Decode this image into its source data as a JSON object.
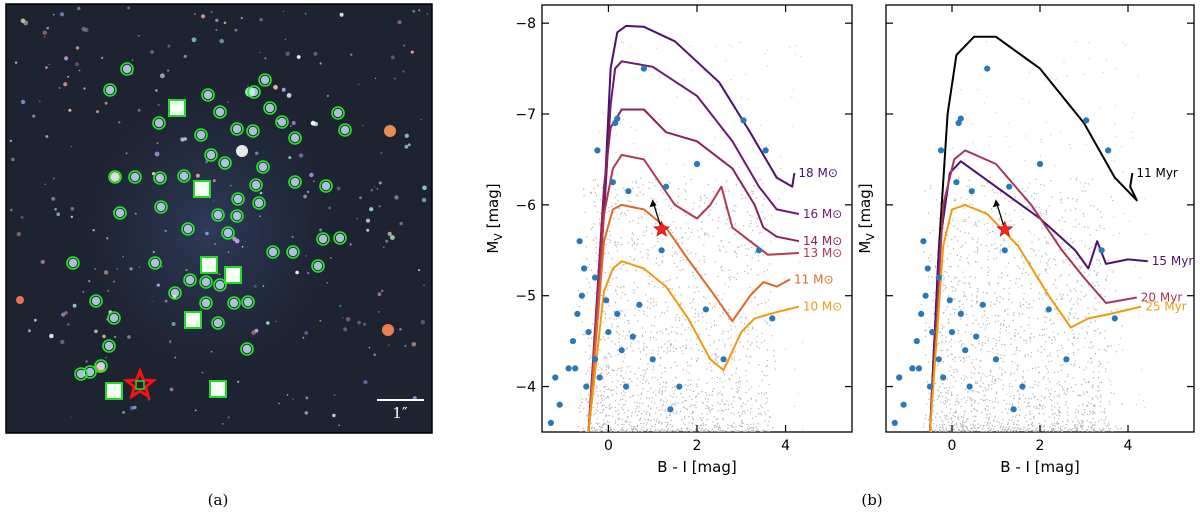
{
  "panel_a": {
    "caption": "(a)",
    "scale_bar_label": "1″"
  },
  "panel_b": {
    "caption": "(b)"
  },
  "chart_data": [
    {
      "type": "line",
      "title": "",
      "xlabel": "B - I [mag]",
      "ylabel": "M_V [mag]",
      "xlim": [
        -1.5,
        5.5
      ],
      "ylim": [
        -3.5,
        -8.2
      ],
      "xticks": [
        0,
        2,
        4
      ],
      "yticks": [
        -4,
        -5,
        -6,
        -7,
        -8
      ],
      "series": [
        {
          "name": "18 M⊙",
          "color": "#4a1170",
          "points": [
            [
              -0.45,
              -3.5
            ],
            [
              -0.1,
              -6.0
            ],
            [
              0.05,
              -7.5
            ],
            [
              0.2,
              -7.9
            ],
            [
              0.4,
              -7.97
            ],
            [
              0.8,
              -7.96
            ],
            [
              1.5,
              -7.8
            ],
            [
              2.5,
              -7.35
            ],
            [
              3.2,
              -6.8
            ],
            [
              3.8,
              -6.3
            ],
            [
              4.15,
              -6.2
            ],
            [
              4.2,
              -6.35
            ]
          ]
        },
        {
          "name": "16 M⊙",
          "color": "#6b1a6f",
          "points": [
            [
              -0.45,
              -3.5
            ],
            [
              -0.1,
              -5.9
            ],
            [
              0.05,
              -7.1
            ],
            [
              0.15,
              -7.5
            ],
            [
              0.3,
              -7.58
            ],
            [
              1.0,
              -7.52
            ],
            [
              2.0,
              -7.2
            ],
            [
              2.8,
              -6.7
            ],
            [
              3.4,
              -6.2
            ],
            [
              3.8,
              -5.95
            ],
            [
              4.3,
              -5.9
            ]
          ]
        },
        {
          "name": "14 M⊙",
          "color": "#8c1f5e",
          "points": [
            [
              -0.45,
              -3.5
            ],
            [
              -0.1,
              -6.2
            ],
            [
              0.05,
              -6.85
            ],
            [
              0.3,
              -7.05
            ],
            [
              0.8,
              -7.05
            ],
            [
              1.3,
              -6.8
            ],
            [
              2.0,
              -6.7
            ],
            [
              2.8,
              -6.4
            ],
            [
              3.3,
              -6.0
            ],
            [
              3.5,
              -5.75
            ],
            [
              3.8,
              -5.65
            ],
            [
              4.3,
              -5.6
            ]
          ]
        },
        {
          "name": "13 M⊙",
          "color": "#b43a4e",
          "points": [
            [
              -0.45,
              -3.5
            ],
            [
              -0.1,
              -5.9
            ],
            [
              0.1,
              -6.4
            ],
            [
              0.3,
              -6.55
            ],
            [
              0.8,
              -6.5
            ],
            [
              1.5,
              -6.0
            ],
            [
              2.0,
              -5.85
            ],
            [
              2.3,
              -6.0
            ],
            [
              2.55,
              -6.2
            ],
            [
              2.8,
              -5.75
            ],
            [
              3.2,
              -5.6
            ],
            [
              3.6,
              -5.45
            ],
            [
              4.3,
              -5.47
            ]
          ]
        },
        {
          "name": "11 M⊙",
          "color": "#e2672a",
          "points": [
            [
              -0.45,
              -3.5
            ],
            [
              -0.1,
              -5.6
            ],
            [
              0.1,
              -5.95
            ],
            [
              0.3,
              -6.0
            ],
            [
              0.8,
              -5.95
            ],
            [
              1.3,
              -5.75
            ],
            [
              1.8,
              -5.4
            ],
            [
              2.4,
              -5.0
            ],
            [
              2.8,
              -4.72
            ],
            [
              3.2,
              -5.0
            ],
            [
              3.5,
              -5.15
            ],
            [
              3.8,
              -5.1
            ],
            [
              4.1,
              -5.18
            ]
          ]
        },
        {
          "name": "10 M⊙",
          "color": "#f09a12",
          "points": [
            [
              -0.45,
              -3.5
            ],
            [
              -0.1,
              -5.05
            ],
            [
              0.1,
              -5.3
            ],
            [
              0.3,
              -5.38
            ],
            [
              0.8,
              -5.3
            ],
            [
              1.3,
              -5.1
            ],
            [
              1.8,
              -4.75
            ],
            [
              2.3,
              -4.3
            ],
            [
              2.6,
              -4.18
            ],
            [
              3.0,
              -4.6
            ],
            [
              3.3,
              -4.75
            ],
            [
              3.8,
              -4.82
            ],
            [
              4.3,
              -4.88
            ]
          ]
        }
      ],
      "highlight_star": {
        "x": 1.2,
        "y": -5.73
      }
    },
    {
      "type": "line",
      "title": "",
      "xlabel": "B - I [mag]",
      "ylabel": "M_V [mag]",
      "xlim": [
        -1.5,
        5.5
      ],
      "ylim": [
        -3.5,
        -8.2
      ],
      "xticks": [
        0,
        2,
        4
      ],
      "yticks": [
        -4,
        -5,
        -6,
        -7,
        -8
      ],
      "series": [
        {
          "name": "11 Myr",
          "color": "#000000",
          "points": [
            [
              -0.5,
              -3.5
            ],
            [
              -0.3,
              -5.5
            ],
            [
              -0.1,
              -7.0
            ],
            [
              0.1,
              -7.65
            ],
            [
              0.5,
              -7.85
            ],
            [
              1.0,
              -7.85
            ],
            [
              2.0,
              -7.5
            ],
            [
              3.0,
              -6.9
            ],
            [
              3.7,
              -6.3
            ],
            [
              4.2,
              -6.05
            ],
            [
              4.05,
              -6.2
            ],
            [
              4.1,
              -6.35
            ]
          ]
        },
        {
          "name": "15 Myr",
          "color": "#4a1170",
          "points": [
            [
              -0.5,
              -3.5
            ],
            [
              -0.3,
              -5.5
            ],
            [
              -0.05,
              -6.35
            ],
            [
              0.2,
              -6.48
            ],
            [
              1.0,
              -6.2
            ],
            [
              2.0,
              -5.85
            ],
            [
              2.8,
              -5.5
            ],
            [
              3.1,
              -5.3
            ],
            [
              3.3,
              -5.6
            ],
            [
              3.5,
              -5.35
            ],
            [
              4.0,
              -5.4
            ],
            [
              4.45,
              -5.38
            ]
          ]
        },
        {
          "name": "20 Myr",
          "color": "#a83655",
          "points": [
            [
              -0.5,
              -3.5
            ],
            [
              -0.2,
              -6.0
            ],
            [
              0.05,
              -6.5
            ],
            [
              0.3,
              -6.6
            ],
            [
              1.0,
              -6.45
            ],
            [
              1.8,
              -6.0
            ],
            [
              2.5,
              -5.5
            ],
            [
              3.0,
              -5.2
            ],
            [
              3.5,
              -4.92
            ],
            [
              4.2,
              -4.98
            ]
          ]
        },
        {
          "name": "25 Myr",
          "color": "#f09a12",
          "points": [
            [
              -0.5,
              -3.5
            ],
            [
              -0.2,
              -5.55
            ],
            [
              0.0,
              -5.95
            ],
            [
              0.3,
              -6.0
            ],
            [
              0.8,
              -5.9
            ],
            [
              1.5,
              -5.55
            ],
            [
              2.2,
              -5.0
            ],
            [
              2.7,
              -4.65
            ],
            [
              3.1,
              -4.75
            ],
            [
              3.6,
              -4.8
            ],
            [
              4.3,
              -4.88
            ]
          ]
        }
      ],
      "highlight_star": {
        "x": 1.2,
        "y": -5.73
      }
    }
  ],
  "points_blue": [
    [
      -1.3,
      -3.6
    ],
    [
      -1.2,
      -4.1
    ],
    [
      -1.1,
      -3.8
    ],
    [
      -0.9,
      -4.2
    ],
    [
      -0.8,
      -4.5
    ],
    [
      -0.7,
      -4.8
    ],
    [
      -0.6,
      -5.0
    ],
    [
      -0.55,
      -5.3
    ],
    [
      -0.65,
      -5.6
    ],
    [
      -0.75,
      -4.2
    ],
    [
      -0.5,
      -4.0
    ],
    [
      -0.45,
      -4.6
    ],
    [
      -0.3,
      -4.3
    ],
    [
      -0.2,
      -4.1
    ],
    [
      0.0,
      -4.6
    ],
    [
      0.2,
      -4.8
    ],
    [
      0.3,
      -4.4
    ],
    [
      0.4,
      -4.0
    ],
    [
      0.1,
      -6.25
    ],
    [
      0.15,
      -6.9
    ],
    [
      0.2,
      -6.95
    ],
    [
      0.8,
      -7.5
    ],
    [
      1.3,
      -6.2
    ],
    [
      1.0,
      -4.3
    ],
    [
      1.2,
      -5.5
    ],
    [
      1.4,
      -3.75
    ],
    [
      2.2,
      -4.85
    ],
    [
      3.4,
      -5.5
    ],
    [
      3.55,
      -6.6
    ],
    [
      3.05,
      -6.93
    ],
    [
      2.0,
      -6.45
    ],
    [
      0.55,
      -4.55
    ],
    [
      -0.3,
      -5.2
    ],
    [
      0.45,
      -6.15
    ],
    [
      -0.05,
      -4.95
    ],
    [
      0.7,
      -4.9
    ],
    [
      3.7,
      -4.75
    ],
    [
      -0.25,
      -6.6
    ],
    [
      1.6,
      -4.0
    ],
    [
      2.6,
      -4.3
    ]
  ],
  "points_gray": []
}
